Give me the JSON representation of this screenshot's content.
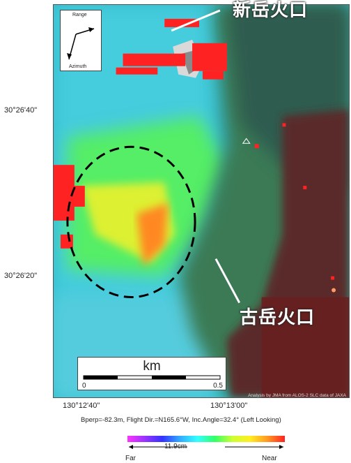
{
  "map": {
    "lat_labels": [
      "30°26'40\"",
      "30°26'20\""
    ],
    "lon_labels": [
      "130°12'40\"",
      "130°13'00\""
    ],
    "credit": "Analysis by JMA from ALOS-2 SLC data of JAXA",
    "caption": "Bperp=-82.3m, Flight Dir.=N165.6°W, Inc.Angle=32.4° (Left Looking)"
  },
  "labels": {
    "shindake": "新岳火口",
    "furudake": "古岳火口"
  },
  "direction": {
    "range": "Range",
    "azimuth": "Azimuth"
  },
  "scale": {
    "unit": "km",
    "zero": "0",
    "end": "0.5"
  },
  "colorbar": {
    "cycle": "11.9cm",
    "far": "Far",
    "near": "Near"
  },
  "colors": {
    "uplift_red": "#ff2222",
    "dashed_circle": "#000000"
  }
}
